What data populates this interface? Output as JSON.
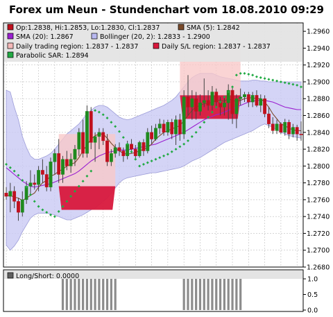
{
  "chart_data": [
    {
      "type": "candlestick",
      "title": "Forex um Neun - Stundenchart vom 18.08.2010 09:29",
      "ylim": [
        1.268,
        1.297
      ],
      "yticks": [
        "1.2960",
        "1.2940",
        "1.2920",
        "1.2900",
        "1.2880",
        "1.2860",
        "1.2840",
        "1.2820",
        "1.2800",
        "1.2780",
        "1.2760",
        "1.2740",
        "1.2720",
        "1.2700",
        "1.2680"
      ],
      "colors": {
        "up": "#1f8a1f",
        "down": "#c0101e",
        "sma5": "#7a4a2a",
        "sma20": "#9a20d0",
        "bollinger_fill": "#c9c9f4",
        "bollinger_line": "#9c9cd8",
        "trading_region": "#f9c8c8",
        "sl_region": "#d8183c",
        "sar": "#22aa44"
      },
      "legend": [
        {
          "key": "ohlc",
          "label": "Op:1.2838, Hi:1.2853, Lo:1.2830, Cl:1.2837",
          "color": "#c0101e"
        },
        {
          "key": "sma5",
          "label": "SMA (5): 1.2842",
          "color": "#7a4a2a"
        },
        {
          "key": "sma20",
          "label": "SMA (20): 1.2867",
          "color": "#9a20d0"
        },
        {
          "key": "boll",
          "label": "Bollinger (20, 2): 1.2833 - 1.2900",
          "color": "#b9b9f0"
        },
        {
          "key": "trading",
          "label": "Daily trading region: 1.2837 - 1.2837",
          "color": "#f4b8b8"
        },
        {
          "key": "sl",
          "label": "Daily S/L region: 1.2837 - 1.2837",
          "color": "#d8183c"
        },
        {
          "key": "sar",
          "label": "Parabolic SAR: 1.2894",
          "color": "#22aa44"
        }
      ],
      "regions": [
        {
          "from": 13,
          "to": 27,
          "trading": [
            1.2776,
            1.2838
          ],
          "sl": [
            1.2748,
            1.2776
          ]
        },
        {
          "from": 43,
          "to": 58,
          "trading": [
            1.2884,
            1.294
          ],
          "sl": [
            1.2856,
            1.2884
          ]
        }
      ],
      "candles": [
        [
          1.2768,
          1.2775,
          1.276,
          1.2764
        ],
        [
          1.2764,
          1.278,
          1.2745,
          1.277
        ],
        [
          1.277,
          1.2776,
          1.275,
          1.2758
        ],
        [
          1.2758,
          1.2762,
          1.2735,
          1.2745
        ],
        [
          1.2745,
          1.277,
          1.274,
          1.276
        ],
        [
          1.276,
          1.2782,
          1.2755,
          1.2776
        ],
        [
          1.2776,
          1.2795,
          1.2765,
          1.278
        ],
        [
          1.278,
          1.279,
          1.2772,
          1.2778
        ],
        [
          1.2778,
          1.28,
          1.277,
          1.2795
        ],
        [
          1.2795,
          1.2808,
          1.278,
          1.279
        ],
        [
          1.279,
          1.28,
          1.277,
          1.2775
        ],
        [
          1.2775,
          1.281,
          1.277,
          1.2805
        ],
        [
          1.2805,
          1.282,
          1.279,
          1.2815
        ],
        [
          1.2815,
          1.2832,
          1.278,
          1.279
        ],
        [
          1.279,
          1.2812,
          1.278,
          1.2808
        ],
        [
          1.2808,
          1.2818,
          1.2795,
          1.28
        ],
        [
          1.28,
          1.2815,
          1.2792,
          1.2808
        ],
        [
          1.2808,
          1.2825,
          1.28,
          1.282
        ],
        [
          1.282,
          1.2845,
          1.2812,
          1.284
        ],
        [
          1.284,
          1.2855,
          1.281,
          1.2815
        ],
        [
          1.2815,
          1.2872,
          1.281,
          1.2865
        ],
        [
          1.2865,
          1.287,
          1.282,
          1.2828
        ],
        [
          1.2828,
          1.284,
          1.2805,
          1.2835
        ],
        [
          1.2835,
          1.2845,
          1.282,
          1.284
        ],
        [
          1.284,
          1.2845,
          1.2825,
          1.283
        ],
        [
          1.283,
          1.2838,
          1.28,
          1.2805
        ],
        [
          1.2805,
          1.282,
          1.28,
          1.2815
        ],
        [
          1.2815,
          1.2826,
          1.281,
          1.2822
        ],
        [
          1.2822,
          1.2828,
          1.2812,
          1.2818
        ],
        [
          1.2818,
          1.2822,
          1.2805,
          1.2812
        ],
        [
          1.2812,
          1.283,
          1.2808,
          1.2826
        ],
        [
          1.2826,
          1.2832,
          1.2815,
          1.282
        ],
        [
          1.282,
          1.2825,
          1.2808,
          1.2812
        ],
        [
          1.2812,
          1.283,
          1.281,
          1.2828
        ],
        [
          1.2828,
          1.2832,
          1.2812,
          1.2818
        ],
        [
          1.2818,
          1.2845,
          1.2815,
          1.284
        ],
        [
          1.284,
          1.2848,
          1.2826,
          1.2832
        ],
        [
          1.2832,
          1.285,
          1.283,
          1.2845
        ],
        [
          1.2845,
          1.2856,
          1.2838,
          1.285
        ],
        [
          1.285,
          1.2855,
          1.2836,
          1.284
        ],
        [
          1.284,
          1.2855,
          1.2836,
          1.2852
        ],
        [
          1.2852,
          1.2856,
          1.2832,
          1.2838
        ],
        [
          1.2838,
          1.286,
          1.2825,
          1.2855
        ],
        [
          1.2855,
          1.2862,
          1.283,
          1.2838
        ],
        [
          1.2838,
          1.289,
          1.2832,
          1.2882
        ],
        [
          1.2882,
          1.2908,
          1.286,
          1.287
        ],
        [
          1.287,
          1.289,
          1.2855,
          1.288
        ],
        [
          1.288,
          1.2888,
          1.2855,
          1.2865
        ],
        [
          1.2865,
          1.2885,
          1.286,
          1.2875
        ],
        [
          1.2875,
          1.2904,
          1.287,
          1.2878
        ],
        [
          1.2878,
          1.289,
          1.2866,
          1.2872
        ],
        [
          1.2872,
          1.2895,
          1.2866,
          1.2888
        ],
        [
          1.2888,
          1.2892,
          1.287,
          1.2876
        ],
        [
          1.2876,
          1.2882,
          1.286,
          1.287
        ],
        [
          1.287,
          1.2882,
          1.286,
          1.2875
        ],
        [
          1.2875,
          1.2897,
          1.2855,
          1.289
        ],
        [
          1.289,
          1.2895,
          1.285,
          1.2862
        ],
        [
          1.2862,
          1.2885,
          1.2845,
          1.288
        ],
        [
          1.288,
          1.2892,
          1.2872,
          1.2882
        ],
        [
          1.2882,
          1.2888,
          1.2876,
          1.2885
        ],
        [
          1.2885,
          1.2888,
          1.287,
          1.2876
        ],
        [
          1.2876,
          1.2888,
          1.287,
          1.2884
        ],
        [
          1.2884,
          1.289,
          1.287,
          1.2872
        ],
        [
          1.2872,
          1.2885,
          1.2864,
          1.288
        ],
        [
          1.288,
          1.2884,
          1.2858,
          1.2862
        ],
        [
          1.2862,
          1.287,
          1.2845,
          1.285
        ],
        [
          1.285,
          1.2858,
          1.2838,
          1.2842
        ],
        [
          1.2842,
          1.2855,
          1.2838,
          1.285
        ],
        [
          1.285,
          1.2852,
          1.2838,
          1.284
        ],
        [
          1.284,
          1.2856,
          1.2836,
          1.2852
        ],
        [
          1.2852,
          1.2855,
          1.2832,
          1.2838
        ],
        [
          1.2838,
          1.285,
          1.2834,
          1.2846
        ],
        [
          1.2846,
          1.2849,
          1.283,
          1.2838
        ],
        [
          1.2838,
          1.2853,
          1.283,
          1.2837
        ]
      ],
      "sma5": [
        1.2765,
        1.2765,
        1.2763,
        1.2762,
        1.2759,
        1.2762,
        1.2765,
        1.2768,
        1.2775,
        1.278,
        1.2783,
        1.2788,
        1.279,
        1.2794,
        1.2796,
        1.28,
        1.2802,
        1.2804,
        1.281,
        1.2818,
        1.2825,
        1.2832,
        1.2836,
        1.2838,
        1.2838,
        1.2833,
        1.2827,
        1.2822,
        1.2818,
        1.2815,
        1.2814,
        1.2815,
        1.2816,
        1.2818,
        1.282,
        1.2822,
        1.2826,
        1.2832,
        1.2836,
        1.284,
        1.2842,
        1.2844,
        1.2846,
        1.2848,
        1.2854,
        1.286,
        1.2866,
        1.287,
        1.2872,
        1.2874,
        1.2874,
        1.2876,
        1.2878,
        1.2878,
        1.2877,
        1.288,
        1.2878,
        1.2877,
        1.2878,
        1.288,
        1.2881,
        1.2881,
        1.288,
        1.288,
        1.2876,
        1.287,
        1.2862,
        1.2856,
        1.285,
        1.2848,
        1.2845,
        1.2843,
        1.2842,
        1.2842
      ],
      "sma20": [
        1.2798,
        1.2794,
        1.279,
        1.2786,
        1.2782,
        1.2779,
        1.2776,
        1.2775,
        1.2776,
        1.2777,
        1.2778,
        1.2779,
        1.2781,
        1.2783,
        1.2785,
        1.2787,
        1.2789,
        1.2791,
        1.2794,
        1.2798,
        1.2802,
        1.2806,
        1.2809,
        1.2812,
        1.2814,
        1.2816,
        1.2817,
        1.2818,
        1.2819,
        1.2819,
        1.2819,
        1.282,
        1.2821,
        1.2822,
        1.2823,
        1.2824,
        1.2825,
        1.2826,
        1.2828,
        1.283,
        1.2832,
        1.2834,
        1.2836,
        1.2838,
        1.284,
        1.2843,
        1.2846,
        1.2849,
        1.2852,
        1.2855,
        1.2857,
        1.2859,
        1.2861,
        1.2862,
        1.2864,
        1.2866,
        1.2868,
        1.287,
        1.2872,
        1.2874,
        1.2876,
        1.2877,
        1.2878,
        1.2878,
        1.2878,
        1.2877,
        1.2876,
        1.2874,
        1.2872,
        1.287,
        1.2869,
        1.2868,
        1.2867,
        1.2867
      ],
      "boll_upper": [
        1.289,
        1.2888,
        1.287,
        1.2855,
        1.2835,
        1.2822,
        1.2812,
        1.2808,
        1.2808,
        1.281,
        1.2812,
        1.2815,
        1.282,
        1.2826,
        1.2832,
        1.2838,
        1.2842,
        1.2846,
        1.285,
        1.2856,
        1.2862,
        1.2866,
        1.287,
        1.2872,
        1.2872,
        1.287,
        1.2866,
        1.2862,
        1.2858,
        1.2856,
        1.2855,
        1.2856,
        1.2858,
        1.286,
        1.2862,
        1.2864,
        1.2866,
        1.2868,
        1.287,
        1.2872,
        1.2875,
        1.2878,
        1.2882,
        1.2888,
        1.2894,
        1.29,
        1.2905,
        1.2908,
        1.291,
        1.291,
        1.291,
        1.291,
        1.2908,
        1.2906,
        1.2905,
        1.2904,
        1.2903,
        1.2902,
        1.2901,
        1.2901,
        1.2901,
        1.2902,
        1.2902,
        1.2901,
        1.2901,
        1.29,
        1.29,
        1.29,
        1.29,
        1.29,
        1.29,
        1.29,
        1.29,
        1.29
      ],
      "boll_lower": [
        1.2706,
        1.27,
        1.2705,
        1.2712,
        1.2722,
        1.273,
        1.2738,
        1.2742,
        1.2744,
        1.2744,
        1.2744,
        1.2743,
        1.2742,
        1.274,
        1.2738,
        1.2736,
        1.2736,
        1.2738,
        1.274,
        1.2742,
        1.2745,
        1.2748,
        1.275,
        1.2754,
        1.2758,
        1.2762,
        1.2768,
        1.2774,
        1.278,
        1.2784,
        1.2786,
        1.2787,
        1.2788,
        1.2789,
        1.279,
        1.2791,
        1.2792,
        1.2792,
        1.2793,
        1.2794,
        1.2795,
        1.2796,
        1.2797,
        1.2798,
        1.28,
        1.2803,
        1.2806,
        1.2808,
        1.281,
        1.2813,
        1.2816,
        1.2819,
        1.2822,
        1.2825,
        1.2828,
        1.283,
        1.2832,
        1.2834,
        1.2836,
        1.2838,
        1.284,
        1.2842,
        1.2845,
        1.2848,
        1.285,
        1.2848,
        1.2846,
        1.2843,
        1.284,
        1.2838,
        1.2836,
        1.2835,
        1.2834,
        1.2833
      ],
      "sar": [
        1.2802,
        1.2798,
        1.2794,
        1.2789,
        1.2783,
        1.2775,
        1.2766,
        1.2758,
        1.2752,
        1.2748,
        1.2745,
        1.2742,
        1.274,
        1.2746,
        1.2752,
        1.2758,
        1.2764,
        1.277,
        1.2776,
        1.2782,
        1.2788,
        1.2794,
        1.2866,
        1.2864,
        1.2861,
        1.2857,
        1.2852,
        1.2847,
        1.2841,
        1.2834,
        1.2826,
        1.2817,
        1.2808,
        1.28,
        1.2802,
        1.2804,
        1.2806,
        1.2808,
        1.281,
        1.2812,
        1.2814,
        1.2817,
        1.282,
        1.2823,
        1.2826,
        1.283,
        1.2835,
        1.284,
        1.2846,
        1.2852,
        1.2858,
        1.2864,
        1.287,
        1.2876,
        1.2882,
        1.2888,
        1.2894,
        1.2908,
        1.291,
        1.291,
        1.2909,
        1.2908,
        1.2906,
        1.2905,
        1.2904,
        1.2903,
        1.2902,
        1.2901,
        1.29,
        1.2899,
        1.2898,
        1.2897,
        1.2896,
        1.2894
      ]
    },
    {
      "type": "bar",
      "legend": [
        {
          "label": "Long/Short: 0.0000",
          "color": "#606060"
        }
      ],
      "ylim": [
        0,
        1
      ],
      "yticks": [
        "1.0",
        "0.5",
        "0.0"
      ],
      "values": [
        0,
        0,
        0,
        0,
        0,
        0,
        0,
        0,
        0,
        0,
        0,
        0,
        0,
        0,
        1,
        1,
        1,
        1,
        1,
        1,
        1,
        1,
        1,
        1,
        1,
        1,
        1,
        1,
        0,
        0,
        0,
        0,
        0,
        0,
        0,
        0,
        0,
        0,
        0,
        0,
        0,
        0,
        0,
        0,
        1,
        1,
        1,
        1,
        1,
        1,
        1,
        1,
        1,
        1,
        1,
        1,
        1,
        1,
        1,
        0,
        0,
        0,
        0,
        0,
        0,
        0,
        0,
        0,
        0,
        0,
        0,
        0,
        0,
        0
      ]
    }
  ]
}
